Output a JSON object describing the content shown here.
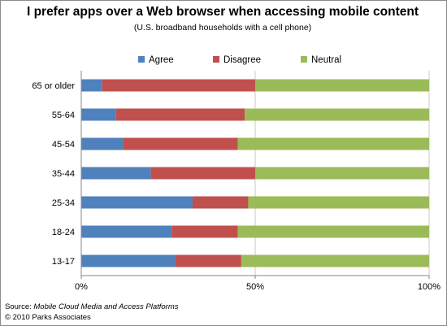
{
  "chart_data": {
    "type": "bar",
    "orientation": "horizontal",
    "stacked": true,
    "normalized": true,
    "title": "I prefer apps over a Web browser when accessing mobile content",
    "subtitle": "(U.S. broadband households with a cell phone)",
    "categories": [
      "65 or older",
      "55-64",
      "45-54",
      "35-44",
      "25-34",
      "18-24",
      "13-17"
    ],
    "series": [
      {
        "name": "Agree",
        "color": "#4f81bd",
        "values": [
          0.06,
          0.1,
          0.12,
          0.2,
          0.32,
          0.26,
          0.27
        ]
      },
      {
        "name": "Disagree",
        "color": "#c0504d",
        "values": [
          0.44,
          0.37,
          0.33,
          0.3,
          0.16,
          0.19,
          0.19
        ]
      },
      {
        "name": "Neutral",
        "color": "#9bbb59",
        "values": [
          0.5,
          0.53,
          0.55,
          0.5,
          0.52,
          0.55,
          0.54
        ]
      }
    ],
    "xlim": [
      0,
      1
    ],
    "x_ticks": [
      "0%",
      "50%",
      "100%"
    ],
    "legend_position": "top",
    "grid": "vertical"
  },
  "footer": {
    "source_label": "Source: ",
    "source_title": "Mobile Cloud Media and Access Platforms",
    "copyright": "© 2010 Parks Associates"
  }
}
